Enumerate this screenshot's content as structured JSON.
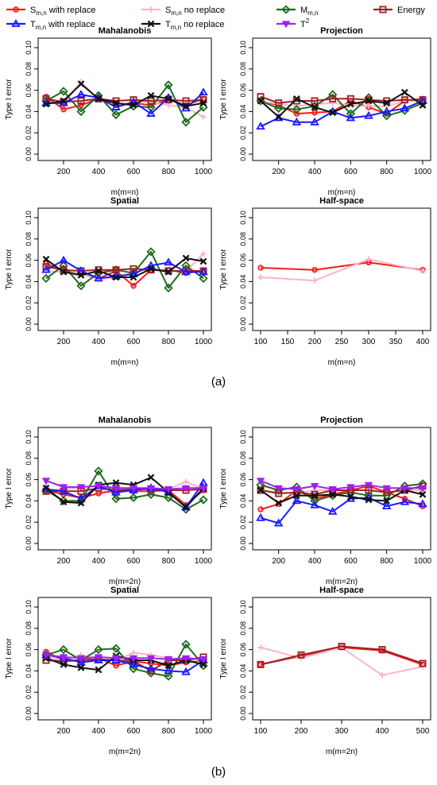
{
  "legend": {
    "items": [
      {
        "base": "S",
        "sub": "m,n",
        "sup": "",
        "text": " with replace",
        "color": "#ff1a1a",
        "marker": "circle"
      },
      {
        "base": "S",
        "sub": "m,n",
        "sup": "",
        "text": " no replace",
        "color": "#ffb3c6",
        "marker": "plus"
      },
      {
        "base": "M",
        "sub": "m,n",
        "sup": "",
        "text": "",
        "color": "#1e6b1e",
        "marker": "diamond"
      },
      {
        "base": "Energy",
        "sub": "",
        "sup": "",
        "text": "",
        "color": "#9b2226",
        "marker": "square"
      },
      {
        "base": "T",
        "sub": "m,n",
        "sup": "",
        "text": " with replace",
        "color": "#1a1aff",
        "marker": "triangle"
      },
      {
        "base": "T",
        "sub": "m,n",
        "sup": "",
        "text": " no replace",
        "color": "#111111",
        "marker": "cross"
      },
      {
        "base": "T",
        "sub": "",
        "sup": "2",
        "text": "",
        "color": "#a020f0",
        "marker": "triangle-down"
      }
    ]
  },
  "captions": {
    "a": "(a)",
    "b": "(b)"
  },
  "chart_data": [
    {
      "type": "line",
      "title": "Mahalanobis",
      "xlabel": "m(m=n)",
      "ylabel": "Type I error",
      "ylim": [
        0,
        0.1
      ],
      "xlim": [
        100,
        1000
      ],
      "xticks": [
        200,
        400,
        600,
        800,
        1000
      ],
      "yticks": [
        "0.00",
        "0.02",
        "0.04",
        "0.06",
        "0.08",
        "0.10"
      ],
      "x": [
        100,
        200,
        300,
        400,
        500,
        600,
        700,
        800,
        900,
        1000
      ],
      "series": [
        {
          "name": "S_m,n with replace",
          "values": [
            0.054,
            0.042,
            0.046,
            0.052,
            0.047,
            0.048,
            0.046,
            0.051,
            0.046,
            0.052
          ]
        },
        {
          "name": "S_m,n no replace",
          "values": [
            0.049,
            0.047,
            0.068,
            0.051,
            0.046,
            0.049,
            0.049,
            0.046,
            0.044,
            0.035
          ]
        },
        {
          "name": "M_m,n",
          "values": [
            0.05,
            0.059,
            0.04,
            0.055,
            0.037,
            0.045,
            0.044,
            0.065,
            0.03,
            0.044
          ]
        },
        {
          "name": "Energy",
          "values": [
            0.052,
            0.049,
            0.05,
            0.052,
            0.05,
            0.051,
            0.05,
            0.051,
            0.05,
            0.051
          ]
        },
        {
          "name": "T_m,n with replace",
          "values": [
            0.048,
            0.048,
            0.056,
            0.053,
            0.044,
            0.049,
            0.038,
            0.053,
            0.043,
            0.058
          ]
        },
        {
          "name": "T_m,n no replace",
          "values": [
            0.047,
            0.05,
            0.066,
            0.052,
            0.048,
            0.046,
            0.055,
            0.052,
            0.045,
            0.048
          ]
        }
      ]
    },
    {
      "type": "line",
      "title": "Projection",
      "xlabel": "m(m=n)",
      "ylabel": "Type I error",
      "ylim": [
        0,
        0.1
      ],
      "xlim": [
        100,
        1000
      ],
      "xticks": [
        200,
        400,
        600,
        800,
        1000
      ],
      "yticks": [
        "0.00",
        "0.02",
        "0.04",
        "0.06",
        "0.08",
        "0.10"
      ],
      "x": [
        100,
        200,
        300,
        400,
        500,
        600,
        700,
        800,
        900,
        1000
      ],
      "series": [
        {
          "name": "S_m,n with replace",
          "values": [
            0.05,
            0.046,
            0.038,
            0.039,
            0.04,
            0.05,
            0.044,
            0.038,
            0.05,
            0.052
          ]
        },
        {
          "name": "S_m,n no replace",
          "values": [
            0.05,
            0.047,
            0.045,
            0.047,
            0.048,
            0.046,
            0.045,
            0.045,
            0.05,
            0.05
          ]
        },
        {
          "name": "M_m,n",
          "values": [
            0.05,
            0.043,
            0.042,
            0.045,
            0.056,
            0.038,
            0.053,
            0.036,
            0.041,
            0.048
          ]
        },
        {
          "name": "Energy",
          "values": [
            0.054,
            0.048,
            0.05,
            0.05,
            0.052,
            0.052,
            0.051,
            0.05,
            0.051,
            0.051
          ]
        },
        {
          "name": "T_m,n with replace",
          "values": [
            0.026,
            0.034,
            0.03,
            0.03,
            0.04,
            0.034,
            0.036,
            0.04,
            0.043,
            0.05
          ]
        },
        {
          "name": "T_m,n no replace",
          "values": [
            0.05,
            0.035,
            0.052,
            0.044,
            0.039,
            0.047,
            0.05,
            0.048,
            0.058,
            0.046
          ]
        }
      ]
    },
    {
      "type": "line",
      "title": "Spatial",
      "xlabel": "m(m=n)",
      "ylabel": "Type I error",
      "ylim": [
        0,
        0.1
      ],
      "xlim": [
        100,
        1000
      ],
      "xticks": [
        200,
        400,
        600,
        800,
        1000
      ],
      "yticks": [
        "0.00",
        "0.02",
        "0.04",
        "0.06",
        "0.08",
        "0.10"
      ],
      "x": [
        100,
        200,
        300,
        400,
        500,
        600,
        700,
        800,
        900,
        1000
      ],
      "series": [
        {
          "name": "S_m,n with replace",
          "values": [
            0.057,
            0.05,
            0.047,
            0.043,
            0.05,
            0.036,
            0.051,
            0.051,
            0.048,
            0.05
          ]
        },
        {
          "name": "S_m,n no replace",
          "values": [
            0.05,
            0.049,
            0.047,
            0.042,
            0.044,
            0.049,
            0.052,
            0.05,
            0.05,
            0.066
          ]
        },
        {
          "name": "M_m,n",
          "values": [
            0.043,
            0.055,
            0.036,
            0.048,
            0.051,
            0.048,
            0.068,
            0.034,
            0.055,
            0.043
          ]
        },
        {
          "name": "Energy",
          "values": [
            0.054,
            0.051,
            0.05,
            0.051,
            0.051,
            0.052,
            0.051,
            0.05,
            0.05,
            0.05
          ]
        },
        {
          "name": "T_m,n with replace",
          "values": [
            0.051,
            0.06,
            0.05,
            0.043,
            0.045,
            0.047,
            0.055,
            0.058,
            0.049,
            0.049
          ]
        },
        {
          "name": "T_m,n no replace",
          "values": [
            0.061,
            0.049,
            0.046,
            0.05,
            0.044,
            0.044,
            0.052,
            0.049,
            0.062,
            0.059
          ]
        }
      ]
    },
    {
      "type": "line",
      "title": "Half-space",
      "xlabel": "m(m=n)",
      "ylabel": "Type I error",
      "ylim": [
        0,
        0.1
      ],
      "xlim": [
        100,
        400
      ],
      "xticks": [
        100,
        150,
        200,
        250,
        300,
        350,
        400
      ],
      "yticks": [
        "0.00",
        "0.02",
        "0.04",
        "0.06",
        "0.08",
        "0.10"
      ],
      "x": [
        100,
        200,
        300,
        400
      ],
      "series": [
        {
          "name": "S_m,n with replace",
          "values": [
            0.053,
            0.051,
            0.058,
            0.051
          ]
        },
        {
          "name": "S_m,n no replace",
          "values": [
            0.044,
            0.041,
            0.061,
            0.05
          ]
        }
      ]
    },
    {
      "type": "line",
      "title": "Mahalanobis",
      "xlabel": "m(m=2n)",
      "ylabel": "Type I error",
      "ylim": [
        0,
        0.1
      ],
      "xlim": [
        100,
        1000
      ],
      "xticks": [
        200,
        400,
        600,
        800,
        1000
      ],
      "yticks": [
        "0.00",
        "0.02",
        "0.04",
        "0.06",
        "0.08",
        "0.10"
      ],
      "x": [
        100,
        200,
        300,
        400,
        500,
        600,
        700,
        800,
        900,
        1000
      ],
      "series": [
        {
          "name": "S_m,n with replace",
          "values": [
            0.05,
            0.046,
            0.043,
            0.047,
            0.05,
            0.049,
            0.049,
            0.05,
            0.036,
            0.05
          ]
        },
        {
          "name": "S_m,n no replace",
          "values": [
            0.05,
            0.051,
            0.052,
            0.05,
            0.051,
            0.05,
            0.052,
            0.051,
            0.058,
            0.051
          ]
        },
        {
          "name": "M_m,n",
          "values": [
            0.05,
            0.04,
            0.04,
            0.068,
            0.042,
            0.043,
            0.046,
            0.043,
            0.032,
            0.041
          ]
        },
        {
          "name": "Energy",
          "values": [
            0.049,
            0.049,
            0.049,
            0.052,
            0.05,
            0.051,
            0.051,
            0.05,
            0.05,
            0.051
          ]
        },
        {
          "name": "T_m,n with replace",
          "values": [
            0.051,
            0.049,
            0.042,
            0.054,
            0.048,
            0.05,
            0.052,
            0.048,
            0.034,
            0.057
          ]
        },
        {
          "name": "T_m,n no replace",
          "values": [
            0.052,
            0.039,
            0.038,
            0.055,
            0.057,
            0.055,
            0.062,
            0.048,
            0.034,
            0.052
          ]
        },
        {
          "name": "T2",
          "values": [
            0.059,
            0.053,
            0.053,
            0.054,
            0.052,
            0.052,
            0.052,
            0.051,
            0.052,
            0.052
          ]
        }
      ]
    },
    {
      "type": "line",
      "title": "Projection",
      "xlabel": "m(m=2n)",
      "ylabel": "Type I error",
      "ylim": [
        0,
        0.1
      ],
      "xlim": [
        100,
        1000
      ],
      "xticks": [
        200,
        400,
        600,
        800,
        1000
      ],
      "yticks": [
        "0.00",
        "0.02",
        "0.04",
        "0.06",
        "0.08",
        "0.10"
      ],
      "x": [
        100,
        200,
        300,
        400,
        500,
        600,
        700,
        800,
        900,
        1000
      ],
      "series": [
        {
          "name": "S_m,n with replace",
          "values": [
            0.032,
            0.037,
            0.05,
            0.042,
            0.046,
            0.05,
            0.054,
            0.048,
            0.042,
            0.035
          ]
        },
        {
          "name": "S_m,n no replace",
          "values": [
            0.05,
            0.048,
            0.047,
            0.05,
            0.05,
            0.05,
            0.05,
            0.048,
            0.05,
            0.05
          ]
        },
        {
          "name": "M_m,n",
          "values": [
            0.055,
            0.05,
            0.053,
            0.04,
            0.045,
            0.048,
            0.045,
            0.045,
            0.054,
            0.056
          ]
        },
        {
          "name": "Energy",
          "values": [
            0.05,
            0.047,
            0.048,
            0.046,
            0.05,
            0.05,
            0.05,
            0.048,
            0.05,
            0.054
          ]
        },
        {
          "name": "T_m,n with replace",
          "values": [
            0.024,
            0.019,
            0.04,
            0.036,
            0.03,
            0.042,
            0.043,
            0.035,
            0.039,
            0.037
          ]
        },
        {
          "name": "T_m,n no replace",
          "values": [
            0.05,
            0.038,
            0.045,
            0.045,
            0.046,
            0.044,
            0.041,
            0.04,
            0.05,
            0.046
          ]
        },
        {
          "name": "T2",
          "values": [
            0.059,
            0.052,
            0.051,
            0.054,
            0.051,
            0.053,
            0.055,
            0.052,
            0.052,
            0.052
          ]
        }
      ]
    },
    {
      "type": "line",
      "title": "Spatial",
      "xlabel": "m(m=2n)",
      "ylabel": "Type I error",
      "ylim": [
        0,
        0.1
      ],
      "xlim": [
        100,
        1000
      ],
      "xticks": [
        200,
        400,
        600,
        800,
        1000
      ],
      "yticks": [
        "0.00",
        "0.02",
        "0.04",
        "0.06",
        "0.08",
        "0.10"
      ],
      "x": [
        100,
        200,
        300,
        400,
        500,
        600,
        700,
        800,
        900,
        1000
      ],
      "series": [
        {
          "name": "S_m,n with replace",
          "values": [
            0.058,
            0.05,
            0.05,
            0.052,
            0.045,
            0.049,
            0.047,
            0.045,
            0.048,
            0.05
          ]
        },
        {
          "name": "S_m,n no replace",
          "values": [
            0.053,
            0.05,
            0.055,
            0.05,
            0.05,
            0.057,
            0.055,
            0.052,
            0.05,
            0.05
          ]
        },
        {
          "name": "M_m,n",
          "values": [
            0.055,
            0.06,
            0.05,
            0.06,
            0.061,
            0.042,
            0.038,
            0.035,
            0.065,
            0.045
          ]
        },
        {
          "name": "Energy",
          "values": [
            0.05,
            0.049,
            0.05,
            0.051,
            0.05,
            0.049,
            0.04,
            0.05,
            0.05,
            0.053
          ]
        },
        {
          "name": "T_m,n with replace",
          "values": [
            0.055,
            0.052,
            0.048,
            0.05,
            0.05,
            0.046,
            0.042,
            0.04,
            0.039,
            0.05
          ]
        },
        {
          "name": "T_m,n no replace",
          "values": [
            0.052,
            0.046,
            0.043,
            0.041,
            0.054,
            0.05,
            0.05,
            0.045,
            0.05,
            0.046
          ]
        },
        {
          "name": "T2",
          "values": [
            0.055,
            0.053,
            0.052,
            0.053,
            0.052,
            0.052,
            0.052,
            0.051,
            0.052,
            0.051
          ]
        }
      ]
    },
    {
      "type": "line",
      "title": "Half-space",
      "xlabel": "m(m=2n)",
      "ylabel": "Type I error",
      "ylim": [
        0,
        0.1
      ],
      "xlim": [
        100,
        500
      ],
      "xticks": [
        100,
        200,
        300,
        400,
        500
      ],
      "yticks": [
        "0.00",
        "0.02",
        "0.04",
        "0.06",
        "0.08",
        "0.10"
      ],
      "x": [
        100,
        200,
        300,
        400,
        500
      ],
      "series": [
        {
          "name": "S_m,n with replace",
          "values": [
            0.046,
            0.054,
            0.062,
            0.059,
            0.046
          ]
        },
        {
          "name": "S_m,n no replace",
          "values": [
            0.062,
            0.052,
            0.062,
            0.036,
            0.044
          ]
        },
        {
          "name": "Energy",
          "values": [
            0.046,
            0.055,
            0.063,
            0.06,
            0.047
          ]
        }
      ]
    }
  ]
}
